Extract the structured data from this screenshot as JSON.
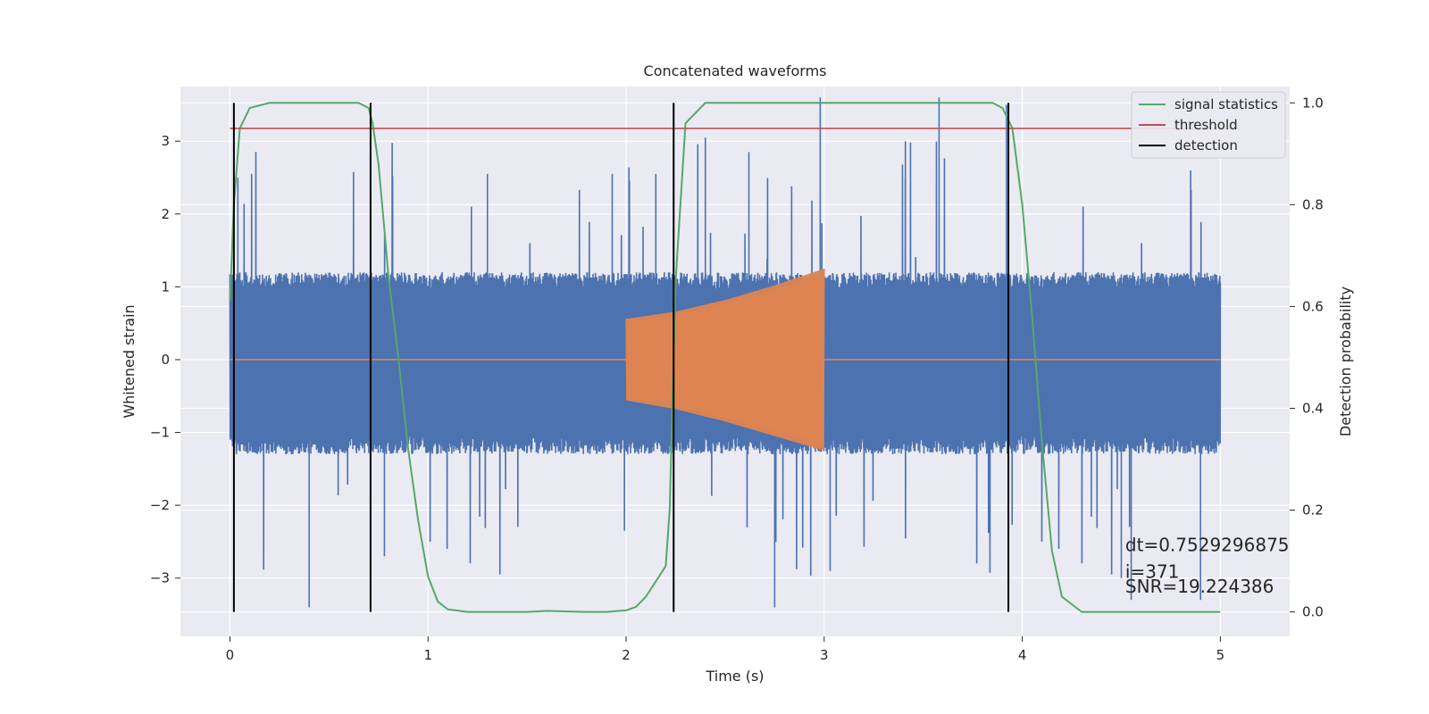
{
  "chart_data": {
    "type": "line",
    "title": "Concatenated waveforms",
    "xlabel": "Time (s)",
    "ylabel": "Whitened strain",
    "y2label": "Detection probability",
    "xlim": [
      -0.25,
      5.35
    ],
    "ylim": [
      -3.8,
      3.75
    ],
    "y2lim": [
      -0.048,
      1.032
    ],
    "x_ticks": [
      0,
      1,
      2,
      3,
      4,
      5
    ],
    "y_ticks": [
      -3,
      -2,
      -1,
      0,
      1,
      2,
      3
    ],
    "y2_ticks": [
      0.0,
      0.2,
      0.4,
      0.6,
      0.8,
      1.0
    ],
    "x_tick_labels": [
      "0",
      "1",
      "2",
      "3",
      "4",
      "5"
    ],
    "y_tick_labels": [
      "−3",
      "−2",
      "−1",
      "0",
      "1",
      "2",
      "3"
    ],
    "y2_tick_labels": [
      "0.0",
      "0.2",
      "0.4",
      "0.6",
      "0.8",
      "1.0"
    ],
    "grid": true,
    "legend_position": "top-right",
    "colors": {
      "strain": "#4c72b0",
      "template": "#dd8452",
      "signal_statistics": "#55a868",
      "threshold": "#c44e52",
      "detection": "#000000",
      "background": "#eaeaf2"
    },
    "series": [
      {
        "name": "",
        "axis": "left",
        "kind": "noise",
        "x_range": [
          0,
          5
        ],
        "core_amplitude": [
          -1.3,
          1.2
        ],
        "peak_amplitude": [
          -3.4,
          3.6
        ]
      },
      {
        "name": "",
        "axis": "left",
        "kind": "chirp",
        "x": [
          0,
          2,
          2.25,
          2.5,
          2.75,
          3,
          5
        ],
        "envelope_upper": [
          0,
          0.56,
          0.66,
          0.82,
          1.02,
          1.25,
          0
        ],
        "envelope_lower": [
          0,
          -0.56,
          -0.68,
          -0.85,
          -1.05,
          -1.25,
          0
        ]
      },
      {
        "name": "signal statistics",
        "axis": "right",
        "x": [
          0,
          0.02,
          0.05,
          0.1,
          0.2,
          0.4,
          0.6,
          0.65,
          0.7,
          0.72,
          0.75,
          0.78,
          0.8,
          0.85,
          0.9,
          0.95,
          1.0,
          1.05,
          1.1,
          1.2,
          1.5,
          1.6,
          1.8,
          1.9,
          2.0,
          2.05,
          2.1,
          2.15,
          2.2,
          2.22,
          2.25,
          2.3,
          2.4,
          2.6,
          3.0,
          3.5,
          3.85,
          3.9,
          3.95,
          4.0,
          4.05,
          4.1,
          4.15,
          4.2,
          4.3,
          4.5,
          5.0
        ],
        "y": [
          0.61,
          0.8,
          0.95,
          0.99,
          1.0,
          1.0,
          1.0,
          1.0,
          0.99,
          0.96,
          0.88,
          0.75,
          0.66,
          0.5,
          0.32,
          0.18,
          0.07,
          0.02,
          0.005,
          0.0,
          0.0,
          0.002,
          0.0,
          0.0,
          0.003,
          0.01,
          0.03,
          0.06,
          0.09,
          0.2,
          0.65,
          0.96,
          1.0,
          1.0,
          1.0,
          1.0,
          1.0,
          0.99,
          0.95,
          0.8,
          0.58,
          0.33,
          0.12,
          0.03,
          0.0,
          0.0,
          0.0
        ]
      },
      {
        "name": "threshold",
        "axis": "right",
        "x": [
          0,
          5.1
        ],
        "y": [
          0.95,
          0.95
        ]
      },
      {
        "name": "detection",
        "axis": "right",
        "kind": "vlines",
        "x": [
          0.02,
          0.71,
          2.24,
          3.93
        ],
        "y_range": [
          0.0,
          1.0
        ]
      }
    ],
    "annotations": [
      {
        "text": "dt=0.7529296875",
        "x": 4.52,
        "y": -2.63
      },
      {
        "text": " i=371",
        "x": 4.52,
        "y": -3.0
      },
      {
        "text": "SNR=19.224386",
        "x": 4.52,
        "y": -3.2
      }
    ]
  }
}
